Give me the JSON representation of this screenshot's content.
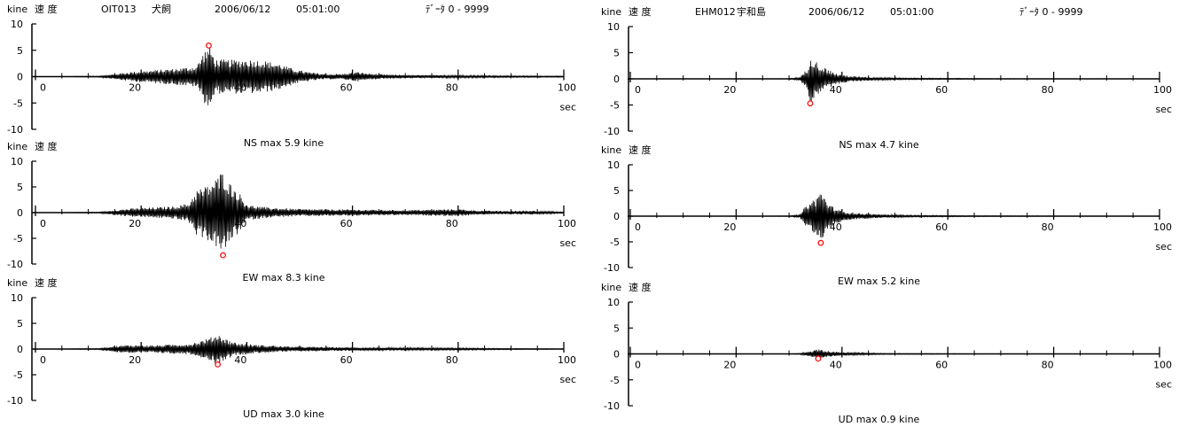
{
  "common": {
    "unit_label": "kine",
    "velocity_label": "速 度",
    "sec_label": "sec",
    "y_ticks": [
      10,
      5,
      0,
      -5,
      -10
    ],
    "x_ticks": [
      0,
      20,
      40,
      60,
      80,
      100
    ],
    "axis_color": "#000000",
    "trace_color": "#000000",
    "peak_marker_color": "#ff0000"
  },
  "stations": [
    {
      "code": "OIT013",
      "name": "犬飼",
      "date": "2006/06/12",
      "time": "05:01:00",
      "data_range": "ﾃﾞｰﾀ 0 - 9999"
    },
    {
      "code": "EHM012",
      "name": "宇和島",
      "date": "2006/06/12",
      "time": "05:01:00",
      "data_range": "ﾃﾞｰﾀ 0 - 9999"
    }
  ],
  "chart_data": [
    {
      "type": "line",
      "station": "OIT013",
      "component": "NS",
      "max_label": "NS  max   5.9 kine",
      "xlim": [
        0,
        100
      ],
      "ylim": [
        -10,
        10
      ],
      "xlabel": "sec",
      "ylabel": "kine",
      "peak": {
        "t": 32.8,
        "v": 5.9
      },
      "envelope": [
        [
          0,
          0
        ],
        [
          12,
          0.1
        ],
        [
          15,
          0.5
        ],
        [
          18,
          0.9
        ],
        [
          22,
          1.2
        ],
        [
          26,
          1.5
        ],
        [
          29,
          1.8
        ],
        [
          30.5,
          2.0
        ],
        [
          32,
          5.0
        ],
        [
          33,
          5.9
        ],
        [
          34,
          3.3
        ],
        [
          37,
          3.2
        ],
        [
          40,
          3.3
        ],
        [
          43,
          3.1
        ],
        [
          46,
          2.5
        ],
        [
          49,
          1.4
        ],
        [
          52,
          0.8
        ],
        [
          55,
          0.5
        ],
        [
          58,
          0.5
        ],
        [
          61,
          0.9
        ],
        [
          63,
          0.6
        ],
        [
          66,
          0.4
        ],
        [
          72,
          0.3
        ],
        [
          80,
          0.25
        ],
        [
          90,
          0.15
        ],
        [
          100,
          0.1
        ]
      ]
    },
    {
      "type": "line",
      "station": "OIT013",
      "component": "EW",
      "max_label": "EW  max   8.3 kine",
      "xlim": [
        0,
        100
      ],
      "ylim": [
        -10,
        10
      ],
      "xlabel": "sec",
      "ylabel": "kine",
      "peak": {
        "t": 35.5,
        "v": -8.3
      },
      "envelope": [
        [
          0,
          0
        ],
        [
          12,
          0.1
        ],
        [
          15,
          0.5
        ],
        [
          18,
          0.8
        ],
        [
          22,
          1.0
        ],
        [
          26,
          1.2
        ],
        [
          29,
          1.8
        ],
        [
          30.5,
          4.5
        ],
        [
          32,
          5.0
        ],
        [
          34,
          6.5
        ],
        [
          35.5,
          8.3
        ],
        [
          37,
          5.5
        ],
        [
          38.5,
          4.0
        ],
        [
          40,
          1.5
        ],
        [
          44,
          1.0
        ],
        [
          50,
          0.7
        ],
        [
          60,
          0.6
        ],
        [
          70,
          0.5
        ],
        [
          75,
          0.6
        ],
        [
          80,
          0.7
        ],
        [
          84,
          0.4
        ],
        [
          90,
          0.3
        ],
        [
          94,
          0.4
        ],
        [
          100,
          0.1
        ]
      ]
    },
    {
      "type": "line",
      "station": "OIT013",
      "component": "UD",
      "max_label": "UD  max   3.0 kine",
      "xlim": [
        0,
        100
      ],
      "ylim": [
        -10,
        10
      ],
      "xlabel": "sec",
      "ylabel": "kine",
      "peak": {
        "t": 34.5,
        "v": -3.0
      },
      "envelope": [
        [
          0,
          0
        ],
        [
          12,
          0.1
        ],
        [
          15,
          0.6
        ],
        [
          18,
          0.8
        ],
        [
          22,
          0.7
        ],
        [
          26,
          0.9
        ],
        [
          29,
          1.0
        ],
        [
          31,
          1.5
        ],
        [
          33,
          2.2
        ],
        [
          34.5,
          3.0
        ],
        [
          36,
          2.0
        ],
        [
          38,
          1.2
        ],
        [
          42,
          0.8
        ],
        [
          48,
          0.5
        ],
        [
          55,
          0.4
        ],
        [
          62,
          0.3
        ],
        [
          70,
          0.25
        ],
        [
          80,
          0.2
        ],
        [
          90,
          0.1
        ],
        [
          100,
          0.05
        ]
      ]
    },
    {
      "type": "line",
      "station": "EHM012",
      "component": "NS",
      "max_label": "NS  max   4.7 kine",
      "xlim": [
        0,
        100
      ],
      "ylim": [
        -10,
        10
      ],
      "xlabel": "sec",
      "ylabel": "kine",
      "peak": {
        "t": 34.0,
        "v": -4.7
      },
      "envelope": [
        [
          0,
          0
        ],
        [
          30,
          0.05
        ],
        [
          32,
          0.3
        ],
        [
          33.5,
          2.0
        ],
        [
          34,
          4.7
        ],
        [
          35,
          3.5
        ],
        [
          36,
          2.5
        ],
        [
          37,
          2.0
        ],
        [
          39,
          1.0
        ],
        [
          42,
          0.5
        ],
        [
          46,
          0.3
        ],
        [
          52,
          0.15
        ],
        [
          60,
          0.1
        ],
        [
          70,
          0.05
        ],
        [
          100,
          0.02
        ]
      ]
    },
    {
      "type": "line",
      "station": "EHM012",
      "component": "EW",
      "max_label": "EW  max   5.2 kine",
      "xlim": [
        0,
        100
      ],
      "ylim": [
        -10,
        10
      ],
      "xlabel": "sec",
      "ylabel": "kine",
      "peak": {
        "t": 36.0,
        "v": -5.2
      },
      "envelope": [
        [
          0,
          0
        ],
        [
          30,
          0.05
        ],
        [
          32,
          0.3
        ],
        [
          33.5,
          2.5
        ],
        [
          35,
          3.5
        ],
        [
          36,
          5.2
        ],
        [
          37,
          3.2
        ],
        [
          38,
          2.0
        ],
        [
          40,
          1.0
        ],
        [
          43,
          0.6
        ],
        [
          48,
          0.3
        ],
        [
          55,
          0.15
        ],
        [
          65,
          0.08
        ],
        [
          100,
          0.02
        ]
      ]
    },
    {
      "type": "line",
      "station": "EHM012",
      "component": "UD",
      "max_label": "UD  max   0.9 kine",
      "xlim": [
        0,
        100
      ],
      "ylim": [
        -10,
        10
      ],
      "xlabel": "sec",
      "ylabel": "kine",
      "peak": {
        "t": 35.5,
        "v": -0.9
      },
      "envelope": [
        [
          0,
          0
        ],
        [
          30,
          0.02
        ],
        [
          32,
          0.1
        ],
        [
          34,
          0.5
        ],
        [
          35.5,
          0.9
        ],
        [
          37,
          0.6
        ],
        [
          39,
          0.4
        ],
        [
          42,
          0.25
        ],
        [
          48,
          0.1
        ],
        [
          60,
          0.05
        ],
        [
          100,
          0.01
        ]
      ]
    }
  ]
}
